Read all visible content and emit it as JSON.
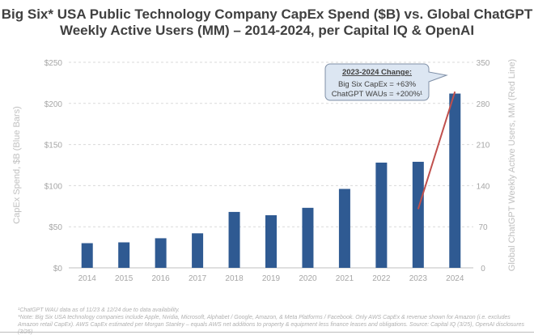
{
  "title_line1": "Big Six* USA Public Technology Company CapEx Spend ($B) vs. Global ChatGPT",
  "title_line2": "Weekly Active Users (MM) – 2014-2024, per Capital IQ & OpenAI",
  "chart_data": {
    "type": "bar",
    "categories": [
      "2014",
      "2015",
      "2016",
      "2017",
      "2018",
      "2019",
      "2020",
      "2021",
      "2022",
      "2023",
      "2024"
    ],
    "series": [
      {
        "type": "bar",
        "axis": "left",
        "color": "#2f5a92",
        "values": [
          30,
          31,
          36,
          42,
          68,
          64,
          73,
          96,
          128,
          129,
          212
        ]
      },
      {
        "type": "line",
        "axis": "right",
        "color": "#c0504d",
        "x": [
          "2023",
          "2024"
        ],
        "values": [
          100,
          300
        ]
      }
    ],
    "ylabel": "CapEx Spend, $B (Blue Bars)",
    "y2label": "Global ChatGPT Weekly Active Users, MM (Red Line)",
    "ylim": [
      0,
      250
    ],
    "y2lim": [
      0,
      350
    ],
    "yticks": [
      "$0",
      "$50",
      "$100",
      "$150",
      "$200",
      "$250"
    ],
    "y2ticks": [
      "0",
      "70",
      "140",
      "210",
      "280",
      "350"
    ],
    "grid": true,
    "annotation": {
      "heading": "2023-2024 Change:",
      "line1": "Big Six CapEx = +63%",
      "line2": "ChatGPT WAUs = +200%¹"
    }
  },
  "footnotes": [
    "¹ChatGPT WAU data as of 11/23 & 12/24 due to data availability.",
    "*Note: Big Six USA technology companies include Apple, Nvidia, Microsoft, Alphabet / Google, Amazon, & Meta Platforms / Facebook. Only AWS CapEx & revenue shown for Amazon (i.e. excludes Amazon retail CapEx). AWS CapEx estimated per Morgan Stanley – equals AWS net additions to property & equipment less finance leases and obligations. Source: Capital IQ (3/25), OpenAI disclosures (3/25)"
  ]
}
